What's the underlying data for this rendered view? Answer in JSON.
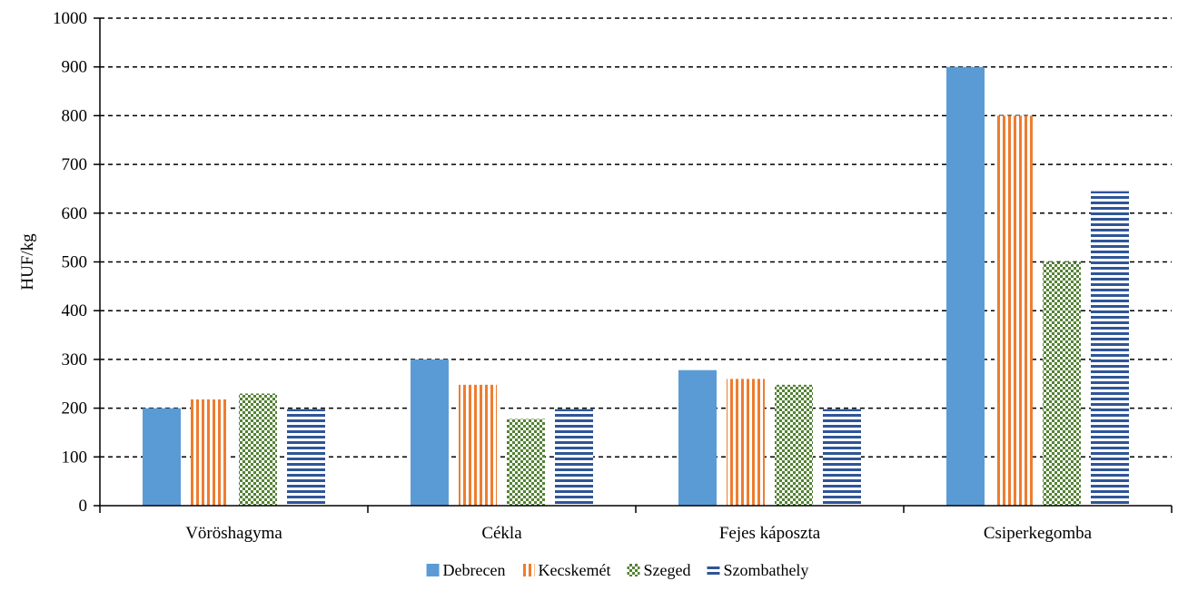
{
  "chart_data": {
    "type": "bar",
    "categories": [
      "Vöröshagyma",
      "Cékla",
      "Fejes káposzta",
      "Csiperkegomba"
    ],
    "series": [
      {
        "name": "Debrecen",
        "values": [
          200,
          300,
          278,
          900
        ],
        "color": "#5b9bd5",
        "pattern": "solid"
      },
      {
        "name": "Kecskemét",
        "values": [
          218,
          248,
          260,
          800
        ],
        "color": "#ed7d31",
        "pattern": "vertical-stripes"
      },
      {
        "name": "Szeged",
        "values": [
          230,
          178,
          248,
          500
        ],
        "color": "#548235",
        "pattern": "checker"
      },
      {
        "name": "Szombathely",
        "values": [
          198,
          198,
          198,
          645
        ],
        "color": "#2f5597",
        "pattern": "horizontal-stripes"
      }
    ],
    "ylabel": "HUF/kg",
    "ylim": [
      0,
      1000
    ],
    "yticks": [
      0,
      100,
      200,
      300,
      400,
      500,
      600,
      700,
      800,
      900,
      1000
    ],
    "grid": true,
    "legend_position": "bottom"
  }
}
